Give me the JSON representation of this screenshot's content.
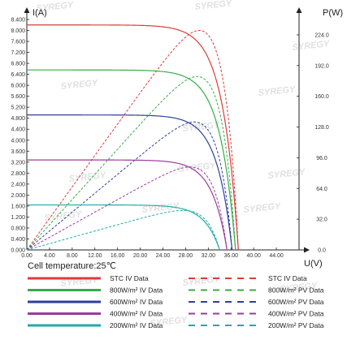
{
  "chart_data": {
    "type": "line",
    "title": "",
    "note": "Cell temperature:25℃",
    "left_axis": {
      "label": "I(A)",
      "lim": [
        0,
        8.4
      ],
      "ticks": [
        "0.000",
        "0.400",
        "0.800",
        "1.200",
        "1.600",
        "2.000",
        "2.400",
        "2.800",
        "3.200",
        "3.600",
        "4.000",
        "4.400",
        "4.800",
        "5.200",
        "5.600",
        "6.000",
        "6.400",
        "6.800",
        "7.200",
        "7.600",
        "8.000",
        "8.400"
      ]
    },
    "right_axis": {
      "label": "P(W)",
      "lim": [
        0,
        240
      ],
      "ticks": [
        "0.0",
        "32.0",
        "64.0",
        "96.0",
        "128.0",
        "160.0",
        "192.0",
        "224.0"
      ]
    },
    "x_axis": {
      "label": "U(V)",
      "lim": [
        0,
        48
      ],
      "ticks": [
        "0.00",
        "4.00",
        "8.00",
        "12.00",
        "16.00",
        "20.00",
        "24.00",
        "28.00",
        "32.00",
        "36.00",
        "40.00",
        "44.00"
      ]
    },
    "grid": false,
    "legend_position": "bottom",
    "series": [
      {
        "name": "STC IV Data",
        "kind": "iv",
        "color": "#e03a3a",
        "style": "solid",
        "isc": 8.2,
        "voc": 37.3,
        "vmp": 30.4,
        "imp": 7.52
      },
      {
        "name": "800W/m²  IV Data",
        "kind": "iv",
        "color": "#3aaa4a",
        "style": "solid",
        "isc": 6.56,
        "voc": 36.8,
        "vmp": 30.0,
        "imp": 6.02
      },
      {
        "name": "600W/m²  IV Data",
        "kind": "iv",
        "color": "#2e3f9c",
        "style": "solid",
        "isc": 4.92,
        "voc": 36.2,
        "vmp": 29.6,
        "imp": 4.5
      },
      {
        "name": "400W/m²  IV Data",
        "kind": "iv",
        "color": "#9a3c9a",
        "style": "solid",
        "isc": 3.28,
        "voc": 35.3,
        "vmp": 28.8,
        "imp": 3.0
      },
      {
        "name": "200W/m²  IV Data",
        "kind": "iv",
        "color": "#22aaaa",
        "style": "solid",
        "isc": 1.64,
        "voc": 34.0,
        "vmp": 27.6,
        "imp": 1.49
      },
      {
        "name": "STC IV Data",
        "kind": "pv",
        "color": "#e03a3a",
        "style": "dashed",
        "pmax": 228.6
      },
      {
        "name": "800W/m²  PV Data",
        "kind": "pv",
        "color": "#3aaa4a",
        "style": "dashed",
        "pmax": 180.6
      },
      {
        "name": "600W/m²  PV Data",
        "kind": "pv",
        "color": "#2e3f9c",
        "style": "dashed",
        "pmax": 133.2
      },
      {
        "name": "400W/m²  PV Data",
        "kind": "pv",
        "color": "#9a3c9a",
        "style": "dashed",
        "pmax": 86.4
      },
      {
        "name": "200W/m²  PV Data",
        "kind": "pv",
        "color": "#22aaaa",
        "style": "dashed",
        "pmax": 41.1
      }
    ],
    "watermark": "SYREGY"
  }
}
